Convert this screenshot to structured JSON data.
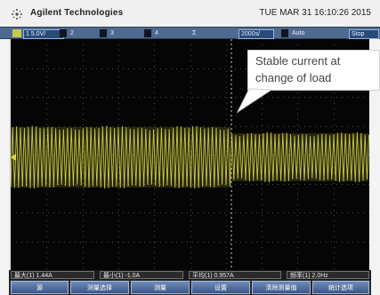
{
  "header": {
    "brand": "Agilent Technologies",
    "datetime": "TUE MAR 31 16:10:26 2015"
  },
  "settings_bar": {
    "ch1": "1 5.0V/",
    "ch2": "2",
    "ch3": "3",
    "ch4": "4",
    "trig": "Σ",
    "timebase": "2000s/",
    "run_state": "Auto",
    "acq_icon": "trigger-mode-icon",
    "mode": "Stop"
  },
  "annotation": {
    "line1": "Stable current at",
    "line2": "change of load"
  },
  "measurements": [
    "最大(1)  1.44A",
    "最小(1)  -1.0A",
    "平均(1)  0.957A",
    "频率(1)  2.0Hz"
  ],
  "softkeys": [
    "源",
    "测量选择",
    "测量",
    "设置",
    "清除测量值",
    "统计选项"
  ],
  "colors": {
    "trace": "#d7d94a",
    "screen_bg": "#050505",
    "bar_blue": "#4f6a8f",
    "softkey_blue": "#3b5788"
  }
}
